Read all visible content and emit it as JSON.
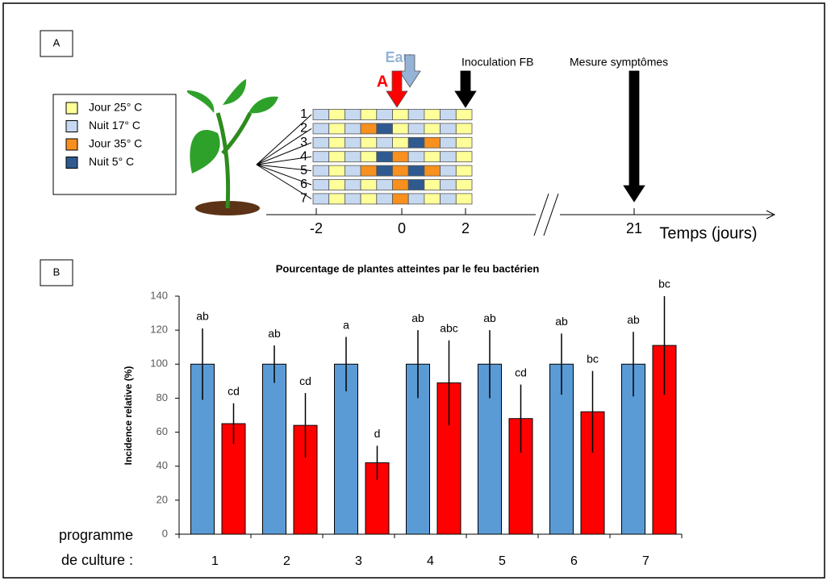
{
  "panel_a": {
    "label": "A",
    "legend": [
      {
        "label": "Jour 25° C",
        "color": "#ffff99"
      },
      {
        "label": "Nuit 17° C",
        "color": "#c6d9f1"
      },
      {
        "label": "Jour 35° C",
        "color": "#f7901e"
      },
      {
        "label": "Nuit 5° C",
        "color": "#2f5a8f"
      }
    ],
    "rows": [
      "1",
      "2",
      "3",
      "4",
      "5",
      "6",
      "7"
    ],
    "schedules": [
      [
        1,
        0,
        1,
        0,
        1,
        0,
        1,
        0,
        1,
        0
      ],
      [
        1,
        0,
        1,
        2,
        3,
        0,
        1,
        0,
        1,
        0
      ],
      [
        1,
        0,
        1,
        0,
        1,
        0,
        3,
        2,
        1,
        0
      ],
      [
        1,
        0,
        1,
        0,
        3,
        2,
        1,
        0,
        1,
        0
      ],
      [
        1,
        0,
        1,
        2,
        3,
        2,
        3,
        2,
        1,
        0
      ],
      [
        1,
        0,
        1,
        0,
        1,
        2,
        3,
        0,
        1,
        0
      ],
      [
        1,
        0,
        1,
        0,
        1,
        2,
        1,
        0,
        1,
        0
      ]
    ],
    "water": "Eau",
    "treatment": "A",
    "inoculation": "Inoculation FB",
    "measure": "Mesure symptômes",
    "timeline_ticks": [
      "-2",
      "0",
      "2",
      "21"
    ],
    "timeline_label": "Temps (jours)"
  },
  "panel_b_label": "B",
  "chart_data": {
    "type": "bar",
    "title": "Pourcentage de plantes atteintes par le feu bactérien",
    "y_label": "Incidence relative (%)",
    "x_label_lines": [
      "programme",
      "de culture :"
    ],
    "categories": [
      "1",
      "2",
      "3",
      "4",
      "5",
      "6",
      "7"
    ],
    "series": [
      {
        "color": "#5b9bd5",
        "values": [
          100,
          100,
          100,
          100,
          100,
          100,
          100
        ],
        "errors": [
          21,
          11,
          16,
          20,
          20,
          18,
          19
        ],
        "letters": [
          "ab",
          "ab",
          "a",
          "ab",
          "ab",
          "ab",
          "ab"
        ]
      },
      {
        "color": "#ff0000",
        "values": [
          65,
          64,
          42,
          89,
          68,
          72,
          111
        ],
        "errors": [
          12,
          19,
          10,
          25,
          20,
          24,
          29
        ],
        "letters": [
          "cd",
          "cd",
          "d",
          "abc",
          "cd",
          "bc",
          "bc"
        ]
      }
    ],
    "ylim": [
      0,
      140
    ],
    "yticks": [
      0,
      20,
      40,
      60,
      80,
      100,
      120,
      140
    ],
    "grid": false
  }
}
